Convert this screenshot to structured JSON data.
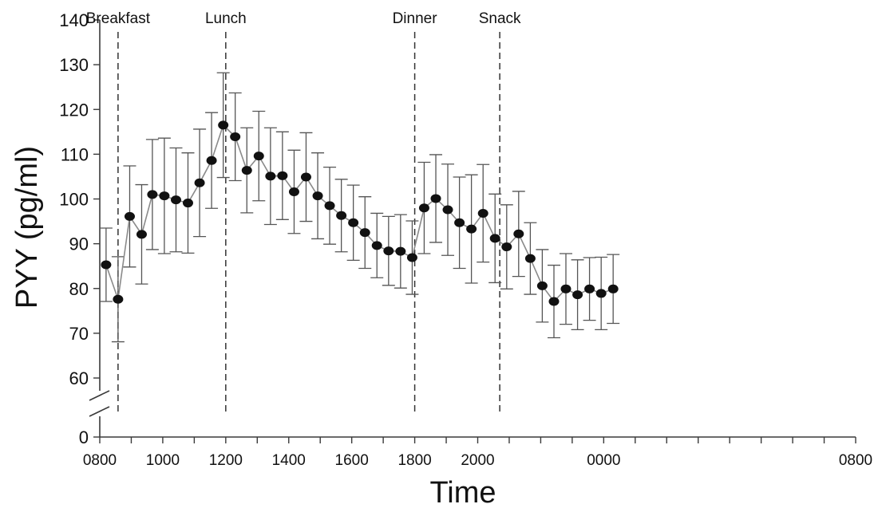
{
  "chart_data": {
    "type": "line",
    "title": "",
    "xlabel": "Time",
    "ylabel": "PYY (pg/ml)",
    "ylim": [
      0,
      140
    ],
    "y_axis_break": [
      0,
      55
    ],
    "y_ticks": [
      0,
      60,
      70,
      80,
      90,
      100,
      110,
      120,
      130,
      140
    ],
    "x_tick_labels": [
      "0800",
      "1000",
      "1200",
      "1400",
      "1600",
      "1800",
      "2000",
      "0000",
      "0800"
    ],
    "x_tick_hours": [
      8,
      10,
      12,
      14,
      16,
      18,
      20,
      24,
      32
    ],
    "x_minor_tick_hours": [
      9,
      11,
      13,
      15,
      17,
      19,
      21,
      22,
      23,
      25,
      26,
      27,
      28,
      29,
      30,
      31
    ],
    "x_hour_range": [
      8,
      32
    ],
    "meals": [
      {
        "label": "Breakfast",
        "hour": 8.58
      },
      {
        "label": "Lunch",
        "hour": 12.0
      },
      {
        "label": "Dinner",
        "hour": 18.0
      },
      {
        "label": "Snack",
        "hour": 20.7
      }
    ],
    "series": [
      {
        "x_hours": [
          8.2,
          8.58,
          8.95,
          9.33,
          9.67,
          10.05,
          10.42,
          10.8,
          11.17,
          11.55,
          11.92,
          12.3,
          12.67,
          13.05,
          13.42,
          13.8,
          14.17,
          14.55,
          14.92,
          15.3,
          15.67,
          16.05,
          16.42,
          16.8,
          17.17,
          17.55,
          17.92,
          18.3,
          18.67,
          19.05,
          19.42,
          19.8,
          20.17,
          20.55,
          20.92,
          21.3,
          21.67,
          22.05,
          22.42,
          22.8,
          23.17,
          23.55,
          23.92,
          24.3
        ],
        "values": [
          85.3,
          77.6,
          96.1,
          92.1,
          101.0,
          100.7,
          99.8,
          99.1,
          103.6,
          108.6,
          116.5,
          113.9,
          106.4,
          109.6,
          105.1,
          105.2,
          101.6,
          104.9,
          100.7,
          98.5,
          96.3,
          94.7,
          92.5,
          89.6,
          88.4,
          88.3,
          86.9,
          98.0,
          100.1,
          97.6,
          94.7,
          93.3,
          96.8,
          91.2,
          89.3,
          92.2,
          86.7,
          80.6,
          77.1,
          79.9,
          78.6,
          79.9,
          78.9,
          79.9
        ],
        "errors": [
          8.2,
          9.5,
          11.3,
          11.1,
          12.3,
          12.9,
          11.6,
          11.2,
          12.0,
          10.7,
          11.7,
          9.8,
          9.5,
          10.0,
          10.8,
          9.8,
          9.3,
          9.9,
          9.6,
          8.6,
          8.1,
          8.4,
          8.0,
          7.2,
          7.7,
          8.2,
          8.2,
          10.2,
          9.8,
          10.2,
          10.2,
          12.1,
          10.9,
          9.9,
          9.4,
          9.5,
          8.0,
          8.1,
          8.1,
          7.9,
          7.8,
          7.0,
          8.1,
          7.7
        ]
      }
    ]
  }
}
